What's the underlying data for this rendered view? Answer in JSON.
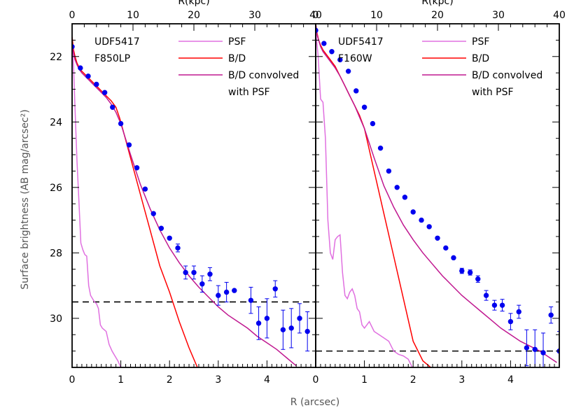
{
  "figure": {
    "xlabel": "R (arcsec)",
    "ylabel": "Surface brightness (AB mag/arcsec²)",
    "top_xlabel": "R(kpc)"
  },
  "chart_data": [
    {
      "type": "line",
      "panel_labels": [
        "UDF5417",
        "F850LP"
      ],
      "xlabel": "R (arcsec)",
      "ylabel": "Surface brightness (AB mag/arcsec²)",
      "top_xlabel": "R(kpc)",
      "xlim": [
        0,
        5
      ],
      "ylim": [
        31.5,
        21
      ],
      "y_inverted": true,
      "x_ticks": [
        "0",
        "1",
        "2",
        "3",
        "4"
      ],
      "y_ticks": [
        22,
        24,
        26,
        28,
        30
      ],
      "top_xlim": [
        0,
        40
      ],
      "top_ticks": [
        "0",
        "10",
        "20",
        "30",
        "40"
      ],
      "legend_position": "top-right",
      "legend": [
        "PSF",
        "B/D",
        "B/D convolved",
        "with PSF"
      ],
      "hline": {
        "y": 29.5,
        "style": "dashed"
      },
      "series": [
        {
          "name": "PSF",
          "color": "#e070e0",
          "x": [
            0.0,
            0.03,
            0.06,
            0.1,
            0.14,
            0.18,
            0.22,
            0.26,
            0.3,
            0.34,
            0.38,
            0.42,
            0.46,
            0.5,
            0.54,
            0.58,
            0.62,
            0.66,
            0.7,
            0.76,
            0.82,
            0.88,
            0.94,
            1.0
          ],
          "y": [
            21.5,
            22.3,
            23.6,
            25.2,
            26.4,
            27.7,
            27.9,
            28.05,
            28.1,
            29.0,
            29.3,
            29.4,
            29.5,
            29.55,
            29.7,
            30.2,
            30.3,
            30.35,
            30.4,
            30.8,
            31.0,
            31.15,
            31.3,
            31.5
          ]
        },
        {
          "name": "B/D",
          "color": "#ff0000",
          "x": [
            0.0,
            0.03,
            0.06,
            0.1,
            0.15,
            0.2,
            0.3,
            0.4,
            0.5,
            0.6,
            0.7,
            0.8,
            0.9,
            0.97,
            1.0,
            1.2,
            1.4,
            1.6,
            1.8,
            2.0,
            2.2,
            2.4,
            2.6
          ],
          "y": [
            21.4,
            21.8,
            22.0,
            22.2,
            22.35,
            22.45,
            22.6,
            22.75,
            22.9,
            23.05,
            23.2,
            23.35,
            23.55,
            23.85,
            24.0,
            25.1,
            26.2,
            27.3,
            28.4,
            29.2,
            30.1,
            30.9,
            31.6
          ]
        },
        {
          "name": "B/D convolved with PSF",
          "color": "#c01890",
          "x": [
            0.0,
            0.03,
            0.06,
            0.1,
            0.15,
            0.2,
            0.3,
            0.4,
            0.5,
            0.6,
            0.7,
            0.8,
            0.9,
            1.0,
            1.2,
            1.4,
            1.6,
            1.8,
            2.0,
            2.2,
            2.4,
            2.6,
            2.8,
            3.0,
            3.2,
            3.4,
            3.6,
            3.8,
            4.0,
            4.2,
            4.4,
            4.6
          ],
          "y": [
            21.6,
            21.9,
            22.1,
            22.25,
            22.4,
            22.5,
            22.65,
            22.8,
            22.95,
            23.1,
            23.25,
            23.45,
            23.7,
            24.05,
            25.0,
            25.9,
            26.65,
            27.3,
            27.85,
            28.3,
            28.7,
            29.05,
            29.35,
            29.65,
            29.9,
            30.1,
            30.3,
            30.55,
            30.75,
            30.95,
            31.2,
            31.45
          ]
        },
        {
          "name": "data",
          "kind": "scatter",
          "color": "#0000ee",
          "x": [
            0.0,
            0.17,
            0.33,
            0.5,
            0.67,
            0.83,
            1.0,
            1.17,
            1.33,
            1.5,
            1.67,
            1.83,
            2.0,
            2.17,
            2.33,
            2.5,
            2.67,
            2.83,
            3.0,
            3.17,
            3.33,
            3.67,
            3.83,
            4.0,
            4.17,
            4.33,
            4.5,
            4.67,
            4.83
          ],
          "y": [
            21.7,
            22.35,
            22.6,
            22.85,
            23.1,
            23.55,
            24.05,
            24.7,
            25.4,
            26.05,
            26.8,
            27.25,
            27.55,
            27.85,
            28.6,
            28.6,
            28.95,
            28.65,
            29.3,
            29.2,
            29.15,
            29.45,
            30.15,
            30.0,
            29.1,
            30.35,
            30.3,
            30.0,
            30.4
          ],
          "yerr": [
            0.0,
            0.0,
            0.0,
            0.0,
            0.0,
            0.0,
            0.0,
            0.0,
            0.0,
            0.0,
            0.0,
            0.0,
            0.0,
            0.12,
            0.2,
            0.2,
            0.25,
            0.2,
            0.3,
            0.3,
            0.0,
            0.4,
            0.5,
            0.6,
            0.25,
            0.6,
            0.6,
            0.45,
            0.6
          ]
        }
      ]
    },
    {
      "type": "line",
      "panel_labels": [
        "UDF5417",
        "F160W"
      ],
      "xlabel": "R (arcsec)",
      "ylabel": "",
      "top_xlabel": "R(kpc)",
      "xlim": [
        0,
        5
      ],
      "ylim": [
        31.5,
        21
      ],
      "y_inverted": true,
      "x_ticks": [
        "0",
        "1",
        "2",
        "3",
        "4"
      ],
      "y_ticks": [
        22,
        24,
        26,
        28,
        30
      ],
      "top_xlim": [
        0,
        40
      ],
      "top_ticks": [
        "0",
        "10",
        "20",
        "30",
        "40"
      ],
      "legend_position": "top-right",
      "legend": [
        "PSF",
        "B/D",
        "B/D convolved",
        "with PSF"
      ],
      "hline": {
        "y": 31.0,
        "style": "dashed"
      },
      "series": [
        {
          "name": "PSF",
          "color": "#e070e0",
          "x": [
            0.0,
            0.05,
            0.1,
            0.15,
            0.2,
            0.25,
            0.3,
            0.35,
            0.4,
            0.45,
            0.5,
            0.55,
            0.6,
            0.65,
            0.7,
            0.75,
            0.8,
            0.85,
            0.9,
            0.95,
            1.0,
            1.1,
            1.2,
            1.3,
            1.4,
            1.5,
            1.6,
            1.7,
            1.8,
            1.9,
            2.0
          ],
          "y": [
            21.2,
            22.0,
            23.3,
            23.4,
            24.5,
            27.0,
            28.0,
            28.2,
            27.6,
            27.5,
            27.45,
            28.6,
            29.3,
            29.4,
            29.2,
            29.1,
            29.3,
            29.7,
            29.8,
            30.2,
            30.3,
            30.1,
            30.4,
            30.5,
            30.6,
            30.7,
            31.0,
            31.1,
            31.15,
            31.25,
            31.55
          ]
        },
        {
          "name": "B/D",
          "color": "#ff0000",
          "x": [
            0.0,
            0.03,
            0.06,
            0.1,
            0.15,
            0.2,
            0.3,
            0.4,
            0.5,
            0.6,
            0.7,
            0.8,
            0.9,
            1.0,
            1.2,
            1.4,
            1.6,
            1.8,
            2.0,
            2.2,
            2.4,
            2.5
          ],
          "y": [
            21.0,
            21.3,
            21.5,
            21.65,
            21.8,
            21.9,
            22.1,
            22.3,
            22.6,
            22.9,
            23.2,
            23.5,
            23.8,
            24.2,
            25.5,
            26.8,
            28.1,
            29.4,
            30.7,
            31.3,
            31.55,
            31.6
          ]
        },
        {
          "name": "B/D convolved with PSF",
          "color": "#c01890",
          "x": [
            0.0,
            0.03,
            0.06,
            0.1,
            0.15,
            0.2,
            0.3,
            0.4,
            0.5,
            0.6,
            0.7,
            0.8,
            0.9,
            1.0,
            1.2,
            1.4,
            1.6,
            1.8,
            2.0,
            2.2,
            2.4,
            2.6,
            2.8,
            3.0,
            3.2,
            3.4,
            3.6,
            3.8,
            4.0,
            4.2,
            4.4,
            4.6,
            4.8,
            4.95
          ],
          "y": [
            21.0,
            21.35,
            21.5,
            21.7,
            21.85,
            21.95,
            22.15,
            22.35,
            22.6,
            22.9,
            23.2,
            23.5,
            23.85,
            24.2,
            25.1,
            25.95,
            26.6,
            27.15,
            27.6,
            28.0,
            28.35,
            28.7,
            29.0,
            29.3,
            29.55,
            29.8,
            30.05,
            30.3,
            30.5,
            30.7,
            30.85,
            31.0,
            31.2,
            31.35
          ]
        },
        {
          "name": "data",
          "kind": "scatter",
          "color": "#0000ee",
          "x": [
            0.0,
            0.17,
            0.33,
            0.5,
            0.67,
            0.83,
            1.0,
            1.17,
            1.33,
            1.5,
            1.67,
            1.83,
            2.0,
            2.17,
            2.33,
            2.5,
            2.67,
            2.83,
            3.0,
            3.17,
            3.33,
            3.5,
            3.67,
            3.83,
            4.0,
            4.17,
            4.33,
            4.5,
            4.67,
            4.83,
            5.0
          ],
          "y": [
            21.2,
            21.6,
            21.85,
            22.1,
            22.45,
            23.05,
            23.55,
            24.05,
            24.8,
            25.5,
            26.0,
            26.3,
            26.75,
            27.0,
            27.2,
            27.55,
            27.85,
            28.15,
            28.55,
            28.6,
            28.8,
            29.3,
            29.6,
            29.6,
            30.1,
            29.8,
            30.9,
            30.95,
            31.05,
            29.9,
            31.0
          ],
          "yerr": [
            0.0,
            0.0,
            0.0,
            0.0,
            0.0,
            0.0,
            0.0,
            0.0,
            0.0,
            0.0,
            0.0,
            0.0,
            0.0,
            0.0,
            0.0,
            0.0,
            0.0,
            0.0,
            0.08,
            0.08,
            0.1,
            0.15,
            0.15,
            0.18,
            0.25,
            0.2,
            0.55,
            0.6,
            0.6,
            0.25,
            0.6
          ]
        }
      ]
    }
  ]
}
